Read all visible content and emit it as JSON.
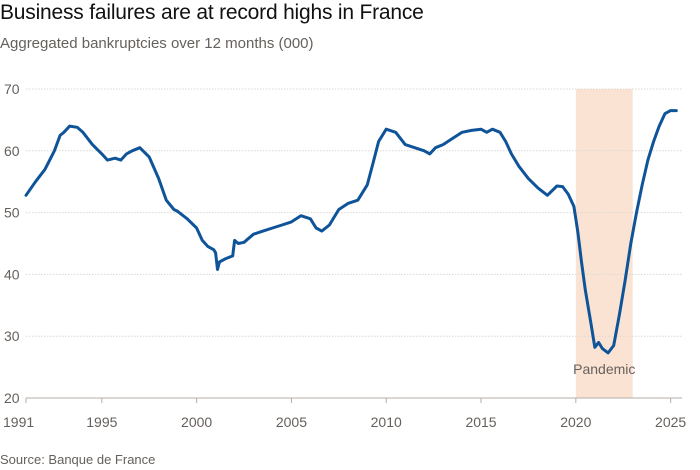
{
  "chart_data": {
    "type": "line",
    "title": "Business failures are at record highs in France",
    "subtitle": "Aggregated bankruptcies over 12 months (000)",
    "source": "Source: Banque de France",
    "xlabel": "",
    "ylabel": "",
    "xlim": [
      1991,
      2025.6
    ],
    "ylim": [
      20,
      70
    ],
    "x_ticks": [
      1991,
      1995,
      2000,
      2005,
      2010,
      2015,
      2020,
      2025
    ],
    "y_ticks": [
      20,
      30,
      40,
      50,
      60,
      70
    ],
    "grid": "horizontal",
    "line_color": "#0f5499",
    "highlight": {
      "label": "Pandemic",
      "x_start": 2020,
      "x_end": 2023,
      "color": "#fae3d3"
    },
    "series": [
      {
        "x": [
          1991,
          1991.5,
          1992,
          1992.5,
          1992.8,
          1993,
          1993.3,
          1993.7,
          1994,
          1994.5,
          1995,
          1995.3,
          1995.7,
          1996,
          1996.3,
          1996.6,
          1997,
          1997.5,
          1998,
          1998.4,
          1998.8,
          1999,
          1999.5,
          2000,
          2000.3,
          2000.6,
          2000.9,
          2001,
          2001.1,
          2001.2,
          2001.5,
          2001.9,
          2002,
          2002.2,
          2002.5,
          2003,
          2003.5,
          2004,
          2004.5,
          2005,
          2005.5,
          2006,
          2006.3,
          2006.6,
          2007,
          2007.5,
          2008,
          2008.5,
          2009,
          2009.3,
          2009.6,
          2010,
          2010.5,
          2011,
          2011.5,
          2012,
          2012.3,
          2012.6,
          2013,
          2013.5,
          2014,
          2014.5,
          2015,
          2015.3,
          2015.6,
          2016,
          2016.3,
          2016.6,
          2017,
          2017.5,
          2018,
          2018.5,
          2019,
          2019.3,
          2019.6,
          2019.9,
          2020.1,
          2020.3,
          2020.5,
          2020.8,
          2021,
          2021.2,
          2021.4,
          2021.7,
          2022,
          2022.3,
          2022.6,
          2022.9,
          2023.2,
          2023.5,
          2023.8,
          2024.1,
          2024.4,
          2024.7,
          2025,
          2025.3
        ],
        "values": [
          52.8,
          55,
          57,
          60,
          62.5,
          63,
          64,
          63.8,
          63,
          61,
          59.5,
          58.5,
          58.8,
          58.5,
          59.5,
          60,
          60.5,
          59,
          55.5,
          52,
          50.5,
          50.2,
          49,
          47.5,
          45.5,
          44.5,
          44,
          43.5,
          40.8,
          42,
          42.5,
          43,
          45.5,
          45,
          45.2,
          46.5,
          47,
          47.5,
          48,
          48.5,
          49.5,
          49,
          47.5,
          47,
          48,
          50.5,
          51.5,
          52,
          54.5,
          58,
          61.5,
          63.5,
          63,
          61,
          60.5,
          60,
          59.5,
          60.5,
          61,
          62,
          63,
          63.3,
          63.5,
          63,
          63.5,
          63,
          61.5,
          59.5,
          57.5,
          55.5,
          54,
          52.8,
          54.3,
          54.2,
          53,
          51,
          47,
          42,
          37.5,
          32,
          28.2,
          29,
          28,
          27.3,
          28.5,
          33.5,
          39,
          45,
          50,
          54.5,
          58.5,
          61.5,
          64,
          66,
          66.5,
          66.5
        ]
      }
    ]
  }
}
